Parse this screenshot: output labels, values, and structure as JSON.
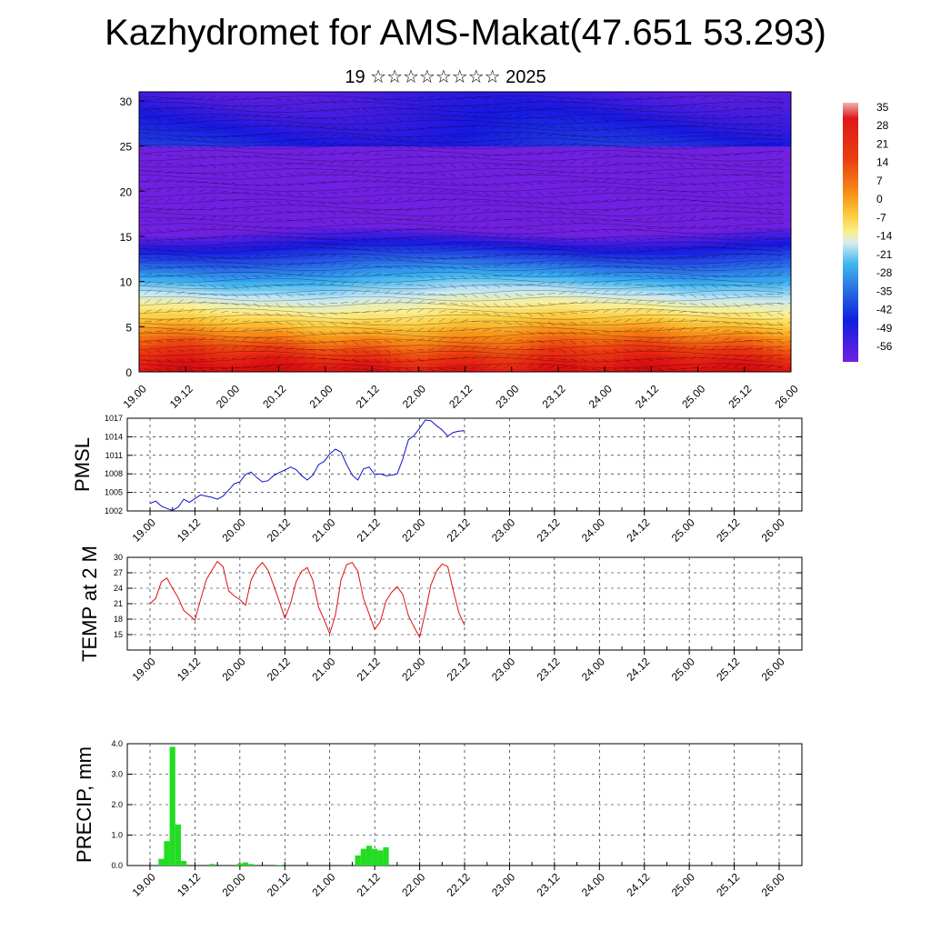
{
  "header": {
    "title": "Kazhydromet for AMS-Makat(47.651 53.293)",
    "subtitle": "19 ☆☆☆☆☆☆☆☆ 2025"
  },
  "colors": {
    "pressure": "#1010c8",
    "temperature": "#e01010",
    "precipitation": "#22dd22"
  },
  "chart_data": [
    {
      "type": "heatmap",
      "title": "",
      "x_ticks": [
        "19.00",
        "19.12",
        "20.00",
        "20.12",
        "21.00",
        "21.12",
        "22.00",
        "22.12",
        "23.00",
        "23.12",
        "24.00",
        "24.12",
        "25.00",
        "25.12",
        "26.00"
      ],
      "y_ticks": [
        "0",
        "5",
        "10",
        "15",
        "20",
        "25",
        "30"
      ],
      "ylim": [
        0,
        31
      ],
      "colorbar_labels": [
        "35",
        "28",
        "21",
        "14",
        "7",
        "0",
        "-7",
        "-14",
        "-21",
        "-28",
        "-35",
        "-42",
        "-49",
        "-56"
      ],
      "colorbar_range": [
        -60,
        38
      ]
    },
    {
      "type": "line",
      "ylabel": "PMSL",
      "x_ticks": [
        "19.00",
        "19.12",
        "20.00",
        "20.12",
        "21.00",
        "21.12",
        "22.00",
        "22.12",
        "23.00",
        "23.12",
        "24.00",
        "24.12",
        "25.00",
        "25.12",
        "26.00"
      ],
      "y_ticks": [
        "1002",
        "1005",
        "1008",
        "1011",
        "1014",
        "1017"
      ],
      "ylim": [
        1002,
        1017
      ],
      "series": [
        {
          "values": [
            1003.2,
            1003.6,
            1002.8,
            1002.4,
            1002.1,
            1002.6,
            1003.9,
            1003.4,
            1004.0,
            1004.6,
            1004.4,
            1004.2,
            1003.9,
            1004.4,
            1005.4,
            1006.4,
            1006.7,
            1007.9,
            1008.3,
            1007.4,
            1006.7,
            1006.9,
            1007.7,
            1008.2,
            1008.6,
            1009.1,
            1008.7,
            1007.7,
            1007.0,
            1007.8,
            1009.5,
            1010.0,
            1011.2,
            1012.0,
            1011.5,
            1009.5,
            1007.8,
            1007.0,
            1008.8,
            1009.1,
            1007.9,
            1008.0,
            1007.7,
            1007.8,
            1008.0,
            1010.4,
            1013.5,
            1014.2,
            1015.4,
            1016.7,
            1016.6,
            1015.8,
            1015.1,
            1014.1,
            1014.7,
            1014.9,
            1015.0
          ]
        }
      ]
    },
    {
      "type": "line",
      "ylabel": "TEMP at 2 M",
      "x_ticks": [
        "19.00",
        "19.12",
        "20.00",
        "20.12",
        "21.00",
        "21.12",
        "22.00",
        "22.12",
        "23.00",
        "23.12",
        "24.00",
        "24.12",
        "25.00",
        "25.12",
        "26.00"
      ],
      "y_ticks": [
        "15",
        "18",
        "21",
        "24",
        "27",
        "30"
      ],
      "ylim": [
        12,
        30
      ],
      "series": [
        {
          "values": [
            21.0,
            22.0,
            25.2,
            26.0,
            24.0,
            22.2,
            19.7,
            18.8,
            17.8,
            21.8,
            25.6,
            27.5,
            29.2,
            28.2,
            23.5,
            22.5,
            21.8,
            20.7,
            25.6,
            27.8,
            29.0,
            27.5,
            24.6,
            21.5,
            18.2,
            21.0,
            25.2,
            27.3,
            28.0,
            25.5,
            20.3,
            17.9,
            15.2,
            18.8,
            25.6,
            28.6,
            29.0,
            27.3,
            22.0,
            19.0,
            16.0,
            17.5,
            21.5,
            23.2,
            24.3,
            22.8,
            18.7,
            16.5,
            14.5,
            19.3,
            24.6,
            27.3,
            28.7,
            28.2,
            23.5,
            19.2,
            16.8
          ]
        }
      ]
    },
    {
      "type": "bar",
      "ylabel": "PRECIP, mm",
      "x_ticks": [
        "19.00",
        "19.12",
        "20.00",
        "20.12",
        "21.00",
        "21.12",
        "22.00",
        "22.12",
        "23.00",
        "23.12",
        "24.00",
        "24.12",
        "25.00",
        "25.12",
        "26.00"
      ],
      "y_ticks": [
        "0.0",
        "1.0",
        "2.0",
        "3.0",
        "4.0"
      ],
      "ylim": [
        0,
        4
      ],
      "series": [
        {
          "values": [
            0,
            0,
            0.22,
            0.8,
            3.9,
            1.35,
            0.15,
            0,
            0,
            0,
            0,
            0.05,
            0,
            0,
            0,
            0,
            0.07,
            0.1,
            0.05,
            0,
            0,
            0,
            0,
            0.02,
            0,
            0,
            0,
            0,
            0,
            0,
            0,
            0,
            0,
            0,
            0,
            0,
            0,
            0.33,
            0.55,
            0.65,
            0.55,
            0.5,
            0.6,
            0,
            0,
            0,
            0,
            0,
            0,
            0,
            0,
            0,
            0,
            0,
            0,
            0,
            0
          ]
        }
      ]
    }
  ]
}
